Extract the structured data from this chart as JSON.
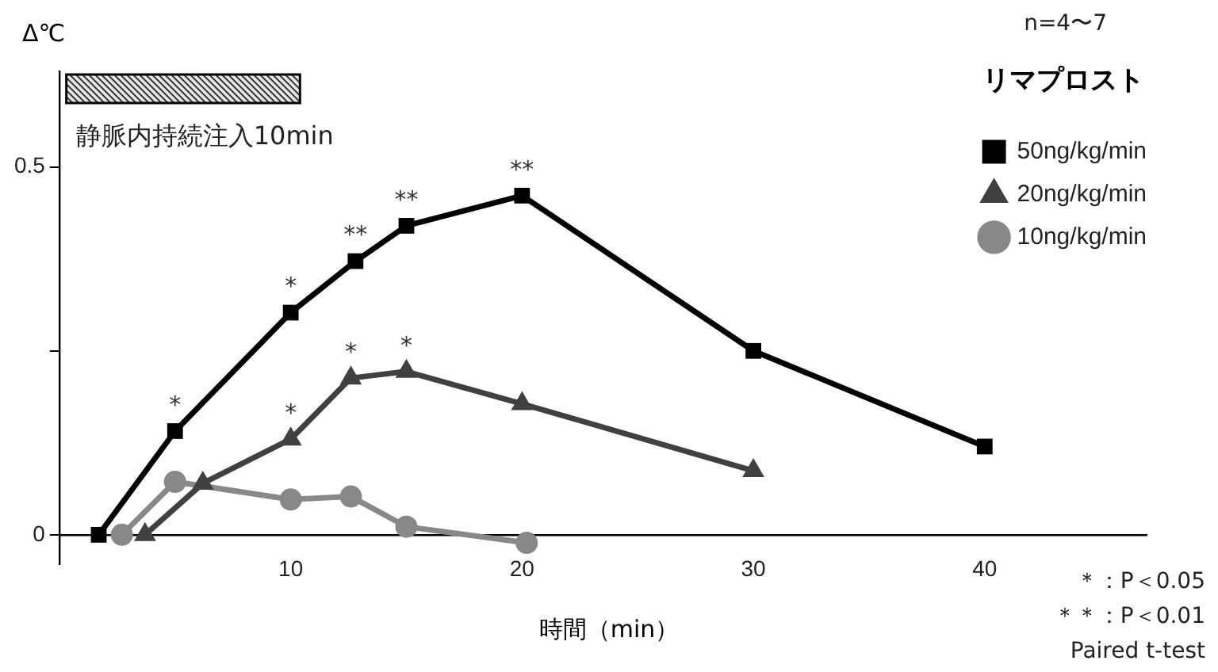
{
  "chart_data": {
    "type": "line",
    "xlabel": "時間（min）",
    "ylabel": "Δ℃",
    "legend_title": "リマプロスト",
    "legend": "top right",
    "xlim": [
      0,
      47
    ],
    "xticks": [
      10,
      20,
      30,
      40
    ],
    "ylim": [
      -0.04,
      0.63
    ],
    "yticks": [
      0,
      {
        "value": 0.25,
        "label": null
      },
      0.5
    ],
    "grid": false,
    "line_style": "solid",
    "series": [
      {
        "name": "50ng/kg/min",
        "color": "#000000",
        "marker": "square",
        "x": [
          1.7,
          5,
          10,
          12.8,
          15,
          20,
          30,
          40
        ],
        "values": [
          0,
          0.141,
          0.302,
          0.372,
          0.42,
          0.461,
          0.25,
          0.12
        ]
      },
      {
        "name": "20ng/kg/min",
        "color": "#404040",
        "marker": "triangle",
        "x": [
          3.7,
          6.2,
          10,
          12.6,
          15,
          20,
          30
        ],
        "values": [
          0,
          0.07,
          0.13,
          0.213,
          0.222,
          0.178,
          0.087
        ]
      },
      {
        "name": "10ng/kg/min",
        "color": "#888888",
        "marker": "circle",
        "x": [
          2.7,
          5,
          10,
          12.6,
          15,
          20.2
        ],
        "values": [
          0,
          0.072,
          0.048,
          0.052,
          0.011,
          -0.011
        ]
      }
    ],
    "bands": [
      {
        "axis": "x",
        "from": 0.3,
        "to": 10.4,
        "label": "静脈内持続注入10min"
      }
    ],
    "annotations": [
      "n=4〜7",
      "＊：P＜0.05",
      "＊＊：P＜0.01",
      "Paired t-test",
      {
        "text": "*",
        "x": 5,
        "y": 0.141
      },
      {
        "text": "*",
        "x": 10,
        "y": 0.302
      },
      {
        "text": "**",
        "x": 12.8,
        "y": 0.372
      },
      {
        "text": "**",
        "x": 15,
        "y": 0.42
      },
      {
        "text": "**",
        "x": 20,
        "y": 0.461
      },
      {
        "text": "*",
        "x": 10,
        "y": 0.13
      },
      {
        "text": "*",
        "x": 12.6,
        "y": 0.213
      },
      {
        "text": "*",
        "x": 15,
        "y": 0.222
      }
    ]
  }
}
